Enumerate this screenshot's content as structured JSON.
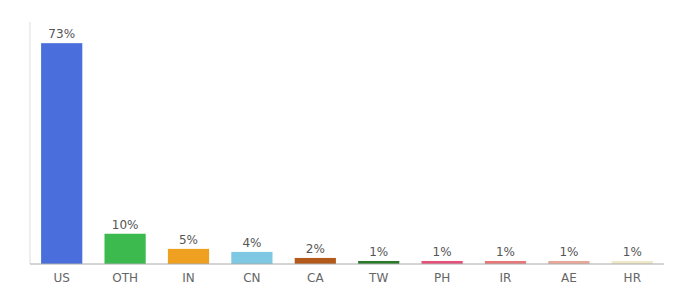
{
  "chart_data": {
    "type": "bar",
    "categories": [
      "US",
      "OTH",
      "IN",
      "CN",
      "CA",
      "TW",
      "PH",
      "IR",
      "AE",
      "HR"
    ],
    "values": [
      73,
      10,
      5,
      4,
      2,
      1,
      1,
      1,
      1,
      1
    ],
    "value_labels": [
      "73%",
      "10%",
      "5%",
      "4%",
      "2%",
      "1%",
      "1%",
      "1%",
      "1%",
      "1%"
    ],
    "colors": [
      "#4a6fdc",
      "#3dba4e",
      "#f0a020",
      "#7ec8e3",
      "#b35a1a",
      "#2a7a2a",
      "#e8527a",
      "#e87878",
      "#e8a898",
      "#f0e8c8"
    ],
    "ylim": [
      0,
      80
    ],
    "data_labels": true,
    "tick_labels": "x",
    "grid": false
  }
}
